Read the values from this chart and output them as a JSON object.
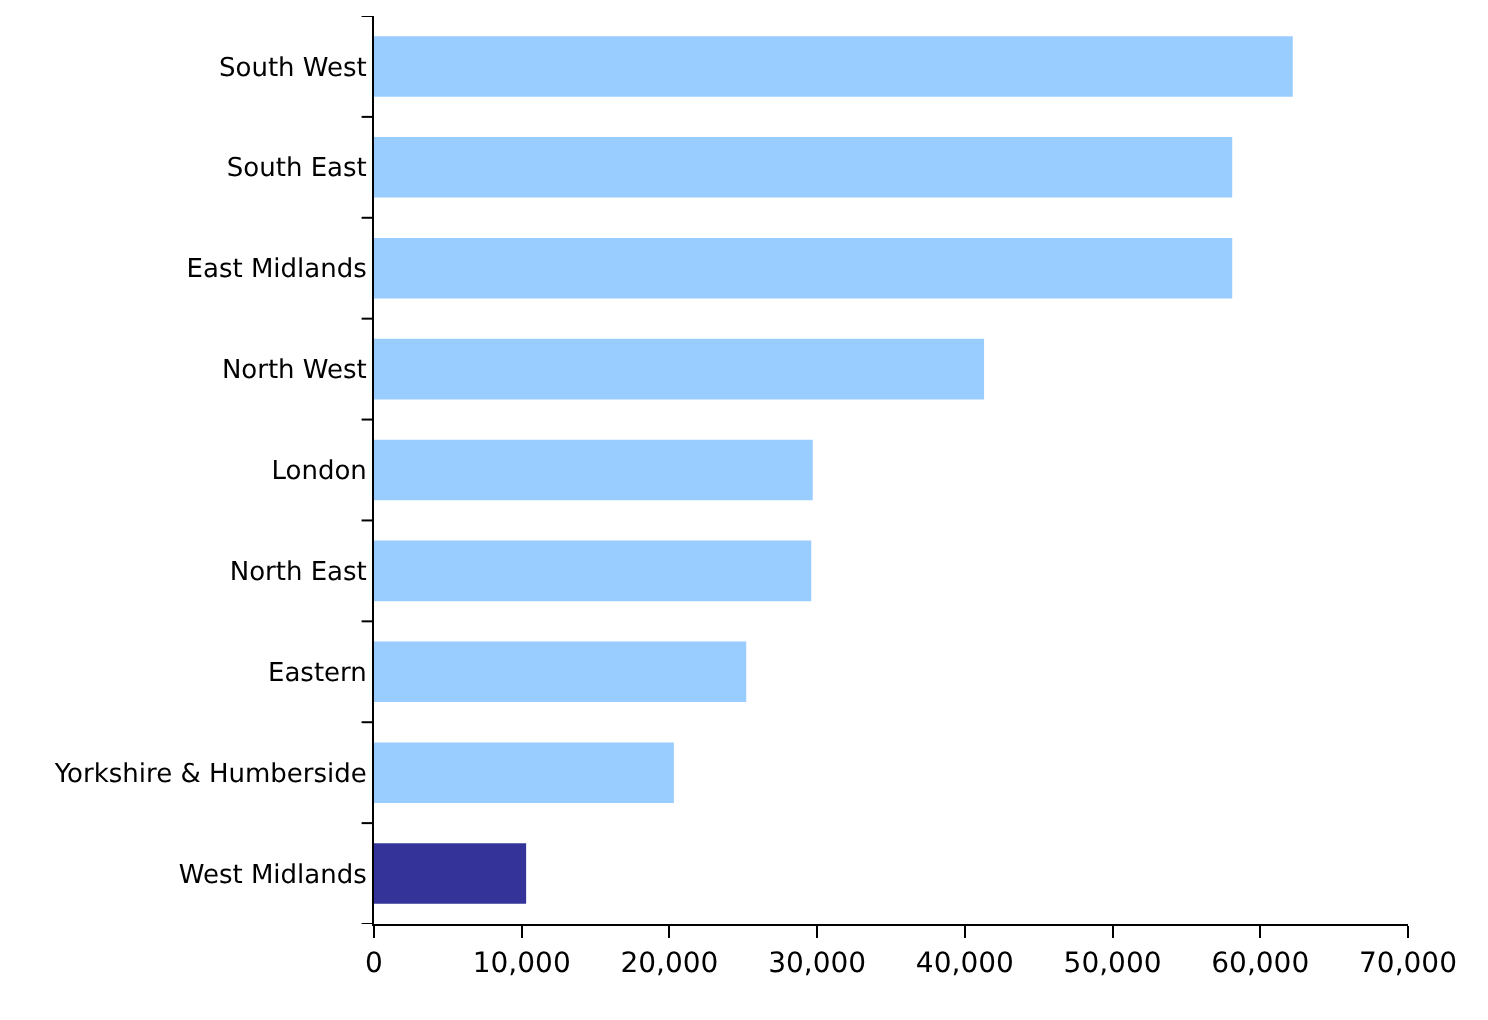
{
  "chart_data": {
    "type": "bar",
    "orientation": "horizontal",
    "categories": [
      "South West",
      "South East",
      "East Midlands",
      "North West",
      "London",
      "North East",
      "Eastern",
      "Yorkshire & Humberside",
      "West Midlands"
    ],
    "values": [
      62200,
      58100,
      58100,
      41300,
      29700,
      29600,
      25200,
      20300,
      10300
    ],
    "colors": [
      "#99ccff",
      "#99ccff",
      "#99ccff",
      "#99ccff",
      "#99ccff",
      "#99ccff",
      "#99ccff",
      "#99ccff",
      "#333399"
    ],
    "xlim": [
      0,
      70000
    ],
    "xticks": [
      {
        "value": 0,
        "label": "0"
      },
      {
        "value": 10000,
        "label": "10,000"
      },
      {
        "value": 20000,
        "label": "20,000"
      },
      {
        "value": 30000,
        "label": "30,000"
      },
      {
        "value": 40000,
        "label": "40,000"
      },
      {
        "value": 50000,
        "label": "50,000"
      },
      {
        "value": 60000,
        "label": "60,000"
      },
      {
        "value": 70000,
        "label": "70,000"
      }
    ],
    "grid": false
  }
}
